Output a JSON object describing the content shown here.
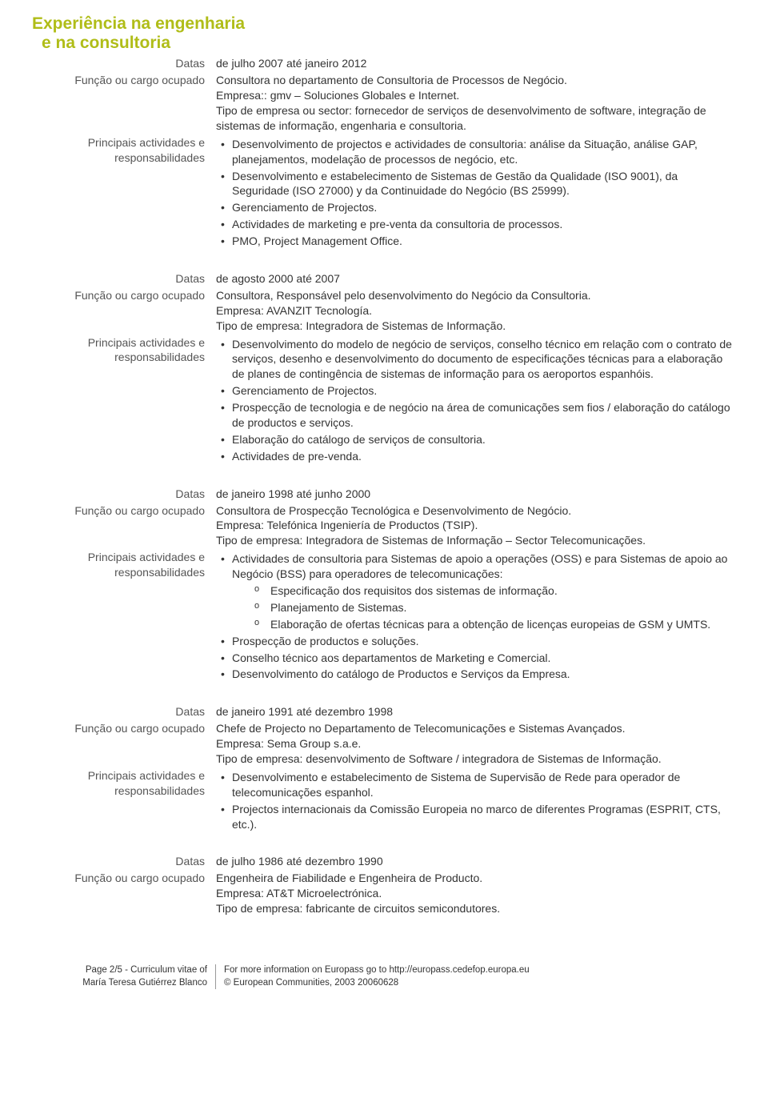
{
  "colors": {
    "title_color": "#b0bd18",
    "text_color": "#333333",
    "label_color": "#555555",
    "background": "#ffffff"
  },
  "section_title": {
    "line1": "Experiência na engenharia",
    "line2": "e na consultoria"
  },
  "labels": {
    "datas": "Datas",
    "funcao": "Função ou cargo ocupado",
    "principais_l1": "Principais actividades e",
    "principais_l2": "responsabilidades"
  },
  "entries": [
    {
      "datas": "de julho 2007 até janeiro 2012",
      "funcao_lines": [
        "Consultora no departamento de Consultoria de Processos de Negócio.",
        "Empresa:: gmv – Soluciones Globales e Internet.",
        "Tipo de empresa ou sector: fornecedor de serviços de desenvolvimento de software, integração de sistemas de informação, engenharia e consultoria."
      ],
      "bullets": [
        "Desenvolvimento de projectos e actividades de consultoria: análise da Situação, análise GAP, planejamentos, modelação de processos de negócio, etc.",
        "Desenvolvimento e estabelecimento de Sistemas de Gestão da Qualidade (ISO 9001), da Seguridade (ISO 27000) y da Continuidade do Negócio (BS 25999).",
        "Gerenciamento de Projectos.",
        "Actividades de marketing e pre-venta da consultoria de processos.",
        "PMO, Project Management Office."
      ]
    },
    {
      "datas": "de agosto 2000 até 2007",
      "funcao_lines": [
        "Consultora, Responsável pelo desenvolvimento do Negócio da Consultoria.",
        "Empresa: AVANZIT Tecnología.",
        "Tipo de empresa: Integradora de Sistemas de Informação."
      ],
      "bullets": [
        "Desenvolvimento do modelo de negócio de serviços, conselho técnico em relação com o contrato de serviços, desenho e desenvolvimento do documento de especificações técnicas para a elaboração de planes de contingência de sistemas de informação para os aeroportos espanhóis.",
        " Gerenciamento de Projectos.",
        "Prospecção de tecnologia e de negócio na área de comunicações sem fios / elaboração do catálogo de productos e serviços.",
        "Elaboração do catálogo de serviços de consultoria.",
        " Actividades de pre-venda."
      ]
    },
    {
      "datas": "de janeiro 1998 até junho 2000",
      "funcao_lines": [
        "Consultora de Prospecção Tecnológica e Desenvolvimento de Negócio.",
        "Empresa: Telefónica Ingeniería de Productos (TSIP).",
        "Tipo de empresa: Integradora de Sistemas de Informação – Sector Telecomunicações."
      ],
      "bullets_complex": [
        {
          "text": "Actividades de consultoria para Sistemas de apoio a operações (OSS) e para Sistemas de apoio ao Negócio (BSS) para operadores de telecomunicações:",
          "sub": [
            "Especificação dos requisitos dos sistemas de informação.",
            "Planejamento de Sistemas.",
            "Elaboração de ofertas técnicas para a obtenção de licenças europeias de GSM y UMTS."
          ]
        },
        {
          "text": "Prospecção de productos e soluções."
        },
        {
          "text": "Conselho técnico aos departamentos de Marketing e Comercial."
        },
        {
          "text": "Desenvolvimento do catálogo de Productos e Serviços da Empresa."
        }
      ]
    },
    {
      "datas": "de janeiro 1991 até dezembro 1998",
      "funcao_lines": [
        "Chefe de Projecto no Departamento de Telecomunicações e Sistemas Avançados.",
        "Empresa: Sema Group s.a.e.",
        "Tipo de empresa: desenvolvimento de Software / integradora de Sistemas de Informação."
      ],
      "bullets": [
        "Desenvolvimento e estabelecimento de Sistema de Supervisão de Rede para operador de telecomunicações espanhol.",
        "Projectos internacionais da Comissão Europeia no marco de diferentes Programas (ESPRIT, CTS, etc.)."
      ]
    },
    {
      "datas": "de julho 1986 até dezembro 1990",
      "funcao_lines": [
        "Engenheira de Fiabilidade e Engenheira de Producto.",
        "Empresa: AT&T Microelectrónica.",
        "Tipo de empresa: fabricante de circuitos semicondutores."
      ]
    }
  ],
  "footer": {
    "left_l1": "Page 2/5 - Curriculum vitae of",
    "left_l2": "María Teresa Gutiérrez Blanco",
    "right_l1": "For more information on Europass go to http://europass.cedefop.europa.eu",
    "right_l2": "© European Communities, 2003   20060628"
  }
}
